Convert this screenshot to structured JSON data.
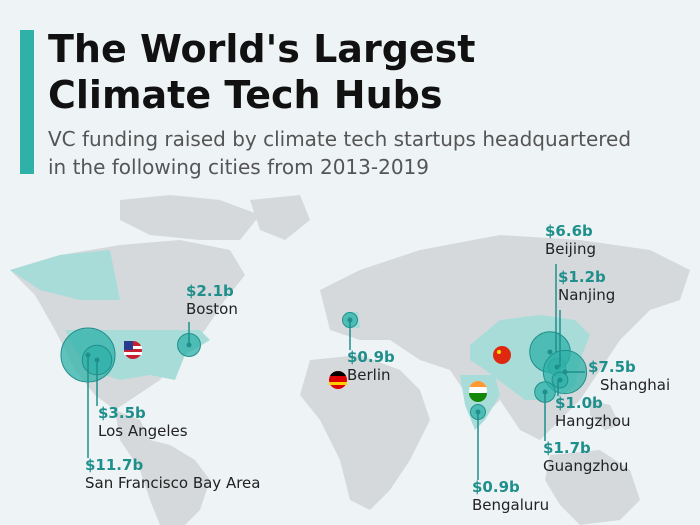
{
  "header": {
    "title_lines": [
      "The World's Largest",
      "Climate Tech Hubs"
    ],
    "subtitle_lines": [
      "VC funding raised by climate tech startups headquartered",
      "in the following cities from 2013-2019"
    ]
  },
  "unit": "billion US dollars",
  "hubs": [
    {
      "city": "San Francisco Bay Area",
      "value": 11.7,
      "value_label": "$11.7b"
    },
    {
      "city": "Los Angeles",
      "value": 3.5,
      "value_label": "$3.5b"
    },
    {
      "city": "Boston",
      "value": 2.1,
      "value_label": "$2.1b"
    },
    {
      "city": "Berlin",
      "value": 0.9,
      "value_label": "$0.9b"
    },
    {
      "city": "Beijing",
      "value": 6.6,
      "value_label": "$6.6b"
    },
    {
      "city": "Nanjing",
      "value": 1.2,
      "value_label": "$1.2b"
    },
    {
      "city": "Shanghai",
      "value": 7.5,
      "value_label": "$7.5b"
    },
    {
      "city": "Hangzhou",
      "value": 1.0,
      "value_label": "$1.0b"
    },
    {
      "city": "Guangzhou",
      "value": 1.7,
      "value_label": "$1.7b"
    },
    {
      "city": "Bengaluru",
      "value": 0.9,
      "value_label": "$0.9b"
    }
  ]
}
